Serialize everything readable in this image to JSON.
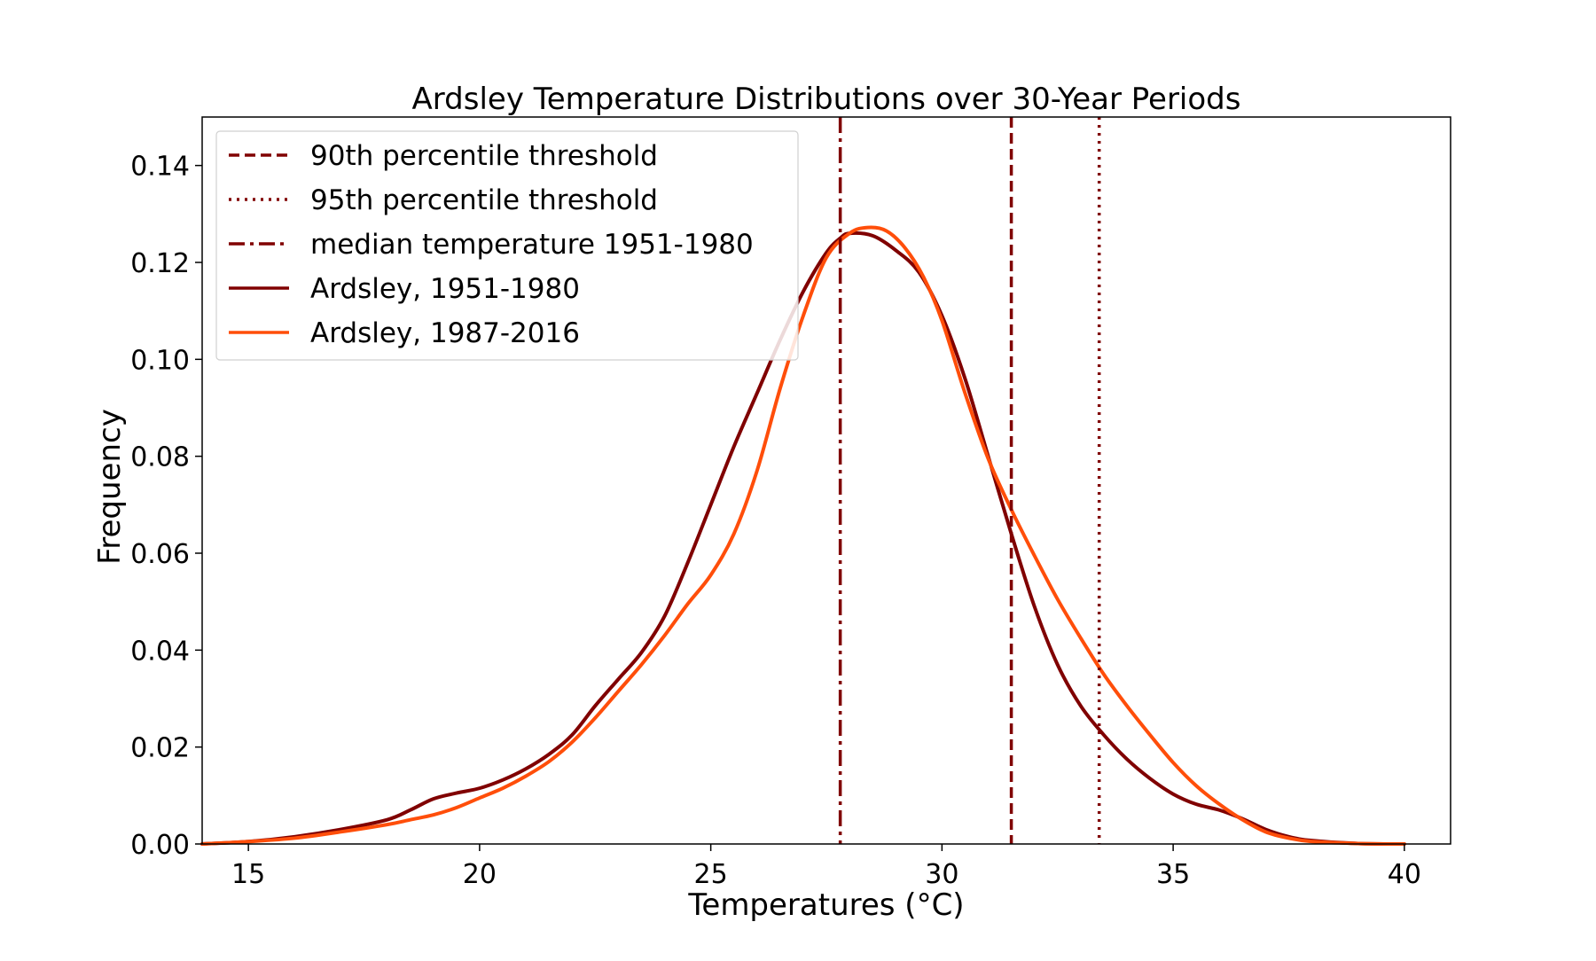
{
  "chart_data": {
    "type": "line",
    "title": "Ardsley Temperature Distributions over 30-Year Periods",
    "xlabel": "Temperatures (°C)",
    "ylabel": "Frequency",
    "xlim": [
      14,
      41
    ],
    "ylim": [
      0,
      0.15
    ],
    "xticks": [
      15,
      20,
      25,
      30,
      35,
      40
    ],
    "yticks": [
      0.0,
      0.02,
      0.04,
      0.06,
      0.08,
      0.1,
      0.12,
      0.14
    ],
    "xtick_labels": [
      "15",
      "20",
      "25",
      "30",
      "35",
      "40"
    ],
    "ytick_labels": [
      "0.00",
      "0.02",
      "0.04",
      "0.06",
      "0.08",
      "0.10",
      "0.12",
      "0.14"
    ],
    "grid": false,
    "legend_position": "upper-left",
    "series": [
      {
        "name": "Ardsley, 1951-1980",
        "color": "#800000",
        "x": [
          14,
          15,
          16,
          17,
          18,
          18.5,
          19,
          19.5,
          20,
          20.5,
          21,
          21.5,
          22,
          22.5,
          23,
          23.5,
          24,
          24.5,
          25,
          25.5,
          26,
          26.5,
          27,
          27.5,
          27.8,
          28,
          28.5,
          29,
          29.5,
          30,
          30.5,
          31,
          31.5,
          32,
          32.5,
          33,
          33.5,
          34,
          34.5,
          35,
          35.5,
          36,
          36.5,
          37,
          37.5,
          38,
          39,
          40
        ],
        "y": [
          0.0,
          0.0005,
          0.0015,
          0.003,
          0.005,
          0.007,
          0.0093,
          0.0105,
          0.0115,
          0.0132,
          0.0155,
          0.0185,
          0.0225,
          0.0285,
          0.034,
          0.0395,
          0.047,
          0.058,
          0.07,
          0.082,
          0.093,
          0.104,
          0.114,
          0.122,
          0.125,
          0.126,
          0.1255,
          0.1225,
          0.118,
          0.109,
          0.096,
          0.08,
          0.064,
          0.049,
          0.037,
          0.0285,
          0.0225,
          0.0175,
          0.0135,
          0.0103,
          0.0082,
          0.007,
          0.0052,
          0.003,
          0.0015,
          0.0007,
          0.0001,
          0.0
        ]
      },
      {
        "name": "Ardsley, 1987-2016",
        "color": "#ff4e0a",
        "x": [
          14,
          15,
          16,
          17,
          18,
          18.5,
          19,
          19.5,
          20,
          20.5,
          21,
          21.5,
          22,
          22.5,
          23,
          23.5,
          24,
          24.5,
          25,
          25.5,
          26,
          26.5,
          27,
          27.5,
          28,
          28.4,
          28.8,
          29.2,
          29.6,
          30,
          30.5,
          31,
          31.5,
          32,
          32.5,
          33,
          33.5,
          34,
          34.5,
          35,
          35.5,
          36,
          36.5,
          37,
          37.5,
          38,
          39,
          40
        ],
        "y": [
          0.0,
          0.0005,
          0.0012,
          0.0025,
          0.004,
          0.005,
          0.006,
          0.0075,
          0.0095,
          0.0115,
          0.014,
          0.017,
          0.021,
          0.026,
          0.0315,
          0.037,
          0.043,
          0.0495,
          0.0555,
          0.064,
          0.077,
          0.094,
          0.109,
          0.121,
          0.126,
          0.1272,
          0.1265,
          0.123,
          0.117,
          0.108,
          0.093,
          0.0795,
          0.069,
          0.0595,
          0.0505,
          0.0425,
          0.035,
          0.0285,
          0.0225,
          0.0168,
          0.012,
          0.0082,
          0.005,
          0.0025,
          0.0012,
          0.0005,
          0.0001,
          0.0
        ]
      }
    ],
    "reference_lines": [
      {
        "name": "90th percentile threshold",
        "x": 31.5,
        "style": "dashed",
        "color": "#800000"
      },
      {
        "name": "95th percentile threshold",
        "x": 33.4,
        "style": "dotted",
        "color": "#800000"
      },
      {
        "name": "median temperature 1951-1980",
        "x": 27.8,
        "style": "dashdot",
        "color": "#800000"
      }
    ],
    "legend": [
      {
        "label": "90th percentile threshold",
        "style": "dashed",
        "color": "#800000"
      },
      {
        "label": "95th percentile threshold",
        "style": "dotted",
        "color": "#800000"
      },
      {
        "label": "median temperature 1951-1980",
        "style": "dashdot",
        "color": "#800000"
      },
      {
        "label": "Ardsley, 1951-1980",
        "style": "solid",
        "color": "#800000"
      },
      {
        "label": "Ardsley, 1987-2016",
        "style": "solid",
        "color": "#ff4e0a"
      }
    ]
  }
}
